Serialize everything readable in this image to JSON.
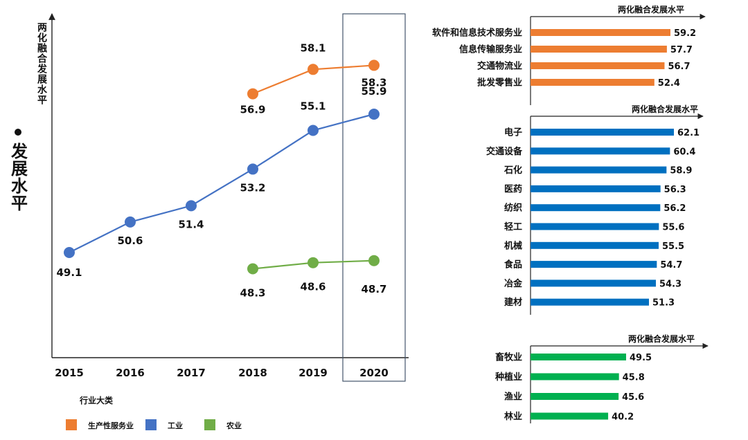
{
  "side_title": "发展水平",
  "chart_data": [
    {
      "type": "line",
      "ylabel": "两化融合发展水平",
      "categories": [
        "2015",
        "2016",
        "2017",
        "2018",
        "2019",
        "2020"
      ],
      "highlight_category": "2020",
      "ylim": [
        45,
        62
      ],
      "legend_title": "行业大类",
      "series": [
        {
          "name": "生产性服务业",
          "color": "#ED7D31",
          "values": [
            null,
            null,
            null,
            56.9,
            58.1,
            58.3
          ]
        },
        {
          "name": "工业",
          "color": "#4472C4",
          "values": [
            49.1,
            50.6,
            51.4,
            53.2,
            55.1,
            55.9
          ]
        },
        {
          "name": "农业",
          "color": "#70AD47",
          "values": [
            null,
            null,
            null,
            48.3,
            48.6,
            48.7
          ]
        }
      ]
    },
    {
      "type": "bar",
      "orientation": "horizontal",
      "title": "两化融合发展水平",
      "color": "#ED7D31",
      "xlim": [
        0,
        65
      ],
      "categories": [
        "软件和信息技术服务业",
        "信息传输服务业",
        "交通物流业",
        "批发零售业"
      ],
      "values": [
        59.2,
        57.7,
        56.7,
        52.4
      ]
    },
    {
      "type": "bar",
      "orientation": "horizontal",
      "title": "两化融合发展水平",
      "color": "#0070C0",
      "xlim": [
        0,
        65
      ],
      "categories": [
        "电子",
        "交通设备",
        "石化",
        "医药",
        "纺织",
        "轻工",
        "机械",
        "食品",
        "冶金",
        "建材"
      ],
      "values": [
        62.1,
        60.4,
        58.9,
        56.3,
        56.2,
        55.6,
        55.5,
        54.7,
        54.3,
        51.3
      ]
    },
    {
      "type": "bar",
      "orientation": "horizontal",
      "title": "两化融合发展水平",
      "color": "#00B050",
      "xlim": [
        0,
        65
      ],
      "categories": [
        "畜牧业",
        "种植业",
        "渔业",
        "林业"
      ],
      "values": [
        49.5,
        45.8,
        45.6,
        40.2
      ]
    }
  ]
}
